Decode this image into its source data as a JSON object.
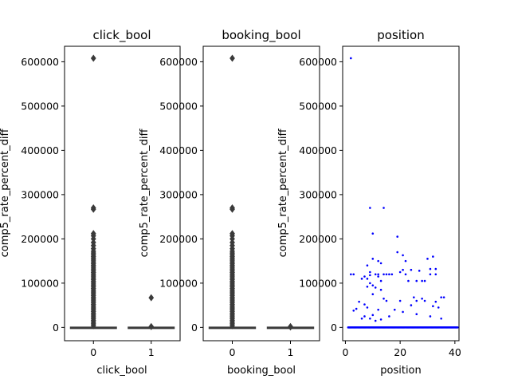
{
  "chart_data": [
    {
      "type": "box",
      "title": "click_bool",
      "xlabel": "click_bool",
      "ylabel": "comp5_rate_percent_diff",
      "categories": [
        "0",
        "1"
      ],
      "ylim": [
        -30000,
        635000
      ],
      "yticks": [
        0,
        100000,
        200000,
        300000,
        400000,
        500000,
        600000
      ],
      "ytick_labels": [
        "0",
        "100000",
        "200000",
        "300000",
        "400000",
        "500000",
        "600000"
      ],
      "box_color": "#3a3a3a",
      "boxes": [
        {
          "category": "0",
          "q1": 0,
          "median": 0,
          "q3": 0,
          "outliers": [
            608000,
            270000,
            267000,
            212000,
            207000,
            200000,
            192000,
            185000,
            178000,
            172000,
            168000,
            164000,
            160000,
            156000,
            152000,
            148000,
            144000,
            140000,
            136000,
            132000,
            128000,
            124000,
            120000,
            116000,
            112000,
            108000,
            104000,
            100000,
            96000,
            92000,
            88000,
            84000,
            80000,
            76000,
            72000,
            68000,
            64000,
            60000,
            56000,
            52000,
            48000,
            44000,
            40000,
            36000,
            32000,
            28000,
            24000,
            20000,
            16000,
            12000,
            8000,
            4000
          ]
        },
        {
          "category": "1",
          "q1": 0,
          "median": 0,
          "q3": 0,
          "outliers": [
            67000,
            2000
          ]
        }
      ]
    },
    {
      "type": "box",
      "title": "booking_bool",
      "xlabel": "booking_bool",
      "ylabel": "comp5_rate_percent_diff",
      "categories": [
        "0",
        "1"
      ],
      "ylim": [
        -30000,
        635000
      ],
      "yticks": [
        0,
        100000,
        200000,
        300000,
        400000,
        500000,
        600000
      ],
      "ytick_labels": [
        "0",
        "100000",
        "200000",
        "300000",
        "400000",
        "500000",
        "600000"
      ],
      "box_color": "#3a3a3a",
      "boxes": [
        {
          "category": "0",
          "q1": 0,
          "median": 0,
          "q3": 0,
          "outliers": [
            608000,
            270000,
            267000,
            212000,
            207000,
            200000,
            192000,
            185000,
            178000,
            172000,
            168000,
            164000,
            160000,
            156000,
            152000,
            148000,
            144000,
            140000,
            136000,
            132000,
            128000,
            124000,
            120000,
            116000,
            112000,
            108000,
            104000,
            100000,
            96000,
            92000,
            88000,
            84000,
            80000,
            76000,
            72000,
            68000,
            64000,
            60000,
            56000,
            52000,
            48000,
            44000,
            40000,
            36000,
            32000,
            28000,
            24000,
            20000,
            16000,
            12000,
            8000,
            4000
          ]
        },
        {
          "category": "1",
          "q1": 0,
          "median": 0,
          "q3": 0,
          "outliers": [
            2000,
            1000
          ]
        }
      ]
    },
    {
      "type": "scatter",
      "title": "position",
      "xlabel": "position",
      "ylabel": "comp5_rate_percent_diff",
      "xlim": [
        -1,
        41.5
      ],
      "ylim": [
        -30000,
        635000
      ],
      "xticks": [
        0,
        20,
        40
      ],
      "yticks": [
        0,
        100000,
        200000,
        300000,
        400000,
        500000,
        600000
      ],
      "ytick_labels": [
        "0",
        "100000",
        "200000",
        "300000",
        "400000",
        "500000",
        "600000"
      ],
      "point_color": "#0000ff",
      "baseline_y": 0,
      "baseline_x_range": [
        1,
        41
      ],
      "points": [
        [
          2,
          608000
        ],
        [
          9,
          270000
        ],
        [
          14,
          270000
        ],
        [
          10,
          212000
        ],
        [
          19,
          205000
        ],
        [
          2,
          120000
        ],
        [
          3,
          120000
        ],
        [
          9,
          118000
        ],
        [
          12,
          120000
        ],
        [
          14,
          120000
        ],
        [
          15,
          120000
        ],
        [
          17,
          120000
        ],
        [
          22,
          120000
        ],
        [
          31,
          120000
        ],
        [
          33,
          120000
        ],
        [
          8,
          140000
        ],
        [
          10,
          155000
        ],
        [
          12,
          150000
        ],
        [
          13,
          145000
        ],
        [
          21,
          163000
        ],
        [
          30,
          155000
        ],
        [
          32,
          160000
        ],
        [
          33,
          132000
        ],
        [
          31,
          132000
        ],
        [
          19,
          170000
        ],
        [
          22,
          150000
        ],
        [
          24,
          130000
        ],
        [
          27,
          128000
        ],
        [
          28,
          105000
        ],
        [
          29,
          105000
        ],
        [
          23,
          105000
        ],
        [
          26,
          105000
        ],
        [
          9,
          125000
        ],
        [
          11,
          120000
        ],
        [
          16,
          120000
        ],
        [
          20,
          125000
        ],
        [
          21,
          130000
        ],
        [
          8,
          110000
        ],
        [
          7,
          115000
        ],
        [
          12,
          115000
        ],
        [
          13,
          105000
        ],
        [
          9,
          100000
        ],
        [
          10,
          95000
        ],
        [
          8,
          92000
        ],
        [
          11,
          90000
        ],
        [
          13,
          85000
        ],
        [
          6,
          110000
        ],
        [
          10,
          75000
        ],
        [
          14,
          65000
        ],
        [
          15,
          60000
        ],
        [
          20,
          60000
        ],
        [
          25,
          68000
        ],
        [
          26,
          60000
        ],
        [
          28,
          65000
        ],
        [
          33,
          58000
        ],
        [
          35,
          68000
        ],
        [
          36,
          68000
        ],
        [
          3,
          38000
        ],
        [
          5,
          58000
        ],
        [
          7,
          52000
        ],
        [
          8,
          45000
        ],
        [
          12,
          40000
        ],
        [
          18,
          40000
        ],
        [
          24,
          50000
        ],
        [
          29,
          60000
        ],
        [
          32,
          48000
        ],
        [
          34,
          45000
        ],
        [
          4,
          42000
        ],
        [
          6,
          20000
        ],
        [
          7,
          25000
        ],
        [
          9,
          20000
        ],
        [
          10,
          28000
        ],
        [
          11,
          15000
        ],
        [
          13,
          18000
        ],
        [
          16,
          25000
        ],
        [
          21,
          35000
        ],
        [
          26,
          30000
        ],
        [
          31,
          25000
        ],
        [
          35,
          20000
        ]
      ]
    }
  ]
}
